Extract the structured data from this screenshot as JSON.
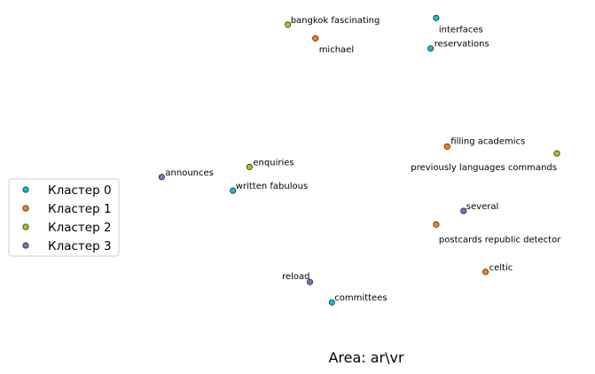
{
  "chart_data": {
    "type": "scatter",
    "title": "",
    "xlabel": "",
    "ylabel": "",
    "grid": false,
    "axes_visible": false,
    "caption": "Area: ar\\vr",
    "legend": {
      "placement": "left"
    },
    "xlim": [
      0,
      10
    ],
    "ylim": [
      0,
      10
    ],
    "series": [
      {
        "name": "Кластер 0",
        "color": "#17becf",
        "points": [
          {
            "label": "interfaces",
            "x": 7.3,
            "y": 9.6
          },
          {
            "label": "reservations",
            "x": 7.2,
            "y": 8.7
          },
          {
            "label": "written fabulous",
            "x": 3.6,
            "y": 4.5
          },
          {
            "label": "committees",
            "x": 5.4,
            "y": 1.2
          }
        ]
      },
      {
        "name": "Кластер 1",
        "color": "#ff7f0e",
        "points": [
          {
            "label": "michael",
            "x": 5.1,
            "y": 9.0
          },
          {
            "label": "filling academics",
            "x": 7.5,
            "y": 5.8
          },
          {
            "label": "postcards republic detector",
            "x": 7.3,
            "y": 3.5
          },
          {
            "label": "celtic",
            "x": 8.2,
            "y": 2.1
          }
        ]
      },
      {
        "name": "Кластер 2",
        "color": "#bcbd22",
        "points": [
          {
            "label": "bangkok fascinating",
            "x": 4.6,
            "y": 9.4
          },
          {
            "label": "previously languages commands",
            "x": 9.5,
            "y": 5.6
          },
          {
            "label": "enquiries",
            "x": 3.9,
            "y": 5.2
          }
        ]
      },
      {
        "name": "Кластер 3",
        "color": "#9467bd",
        "points": [
          {
            "label": "announces",
            "x": 2.3,
            "y": 4.9
          },
          {
            "label": "several",
            "x": 7.8,
            "y": 3.9
          },
          {
            "label": "reload",
            "x": 5.0,
            "y": 1.8
          }
        ]
      }
    ]
  }
}
